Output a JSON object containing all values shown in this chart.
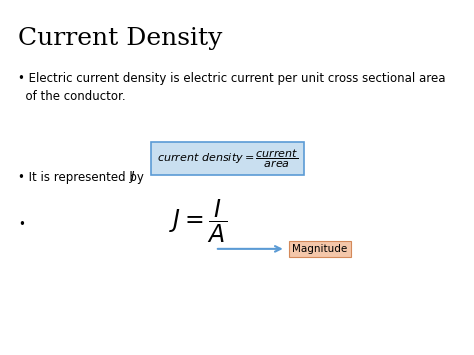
{
  "title": "Current Density",
  "title_fontsize": 18,
  "bg_color": "#ffffff",
  "bullet1_text": "Electric current density is electric current per unit cross sectional area\n  of the conductor.",
  "bullet1_fontsize": 8.5,
  "bullet2_prefix": "• It is represented by",
  "bullet2_fontsize": 8.5,
  "formula_facecolor": "#c9dff0",
  "formula_edgecolor": "#5b9bd5",
  "magnitude_label": "Magnitude",
  "magnitude_facecolor": "#f4c7aa",
  "magnitude_edgecolor": "#d4895a",
  "magnitude_fontsize": 7.5,
  "arrow_color": "#5b9bd5",
  "main_formula_fontsize": 17,
  "formula_fontsize": 8
}
